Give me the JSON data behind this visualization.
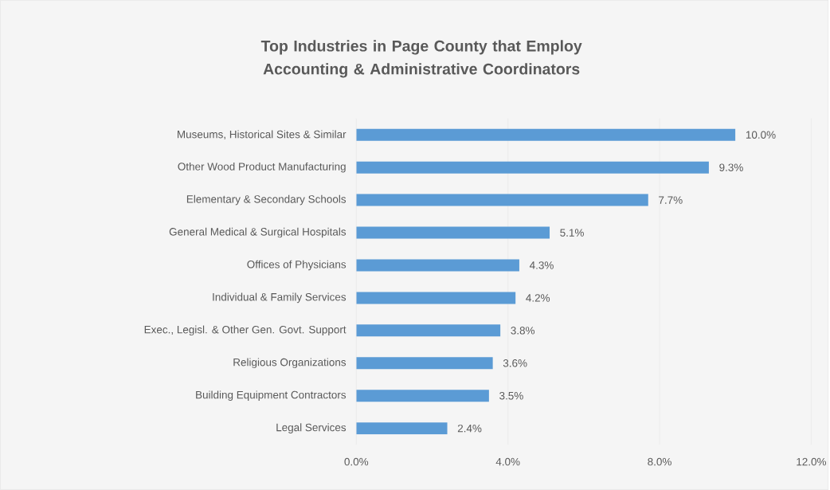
{
  "chart_data": {
    "type": "bar",
    "orientation": "horizontal",
    "title": "Top Industries in Page County that Employ Accounting & Administrative Coordinators",
    "categories": [
      "Museums, Historical Sites & Similar",
      "Other Wood Product Manufacturing",
      "Elementary & Secondary Schools",
      "General Medical & Surgical Hospitals",
      "Offices of Physicians",
      "Individual & Family Services",
      "Exec., Legisl. & Other Gen. Govt. Support",
      "Religious Organizations",
      "Building Equipment Contractors",
      "Legal Services"
    ],
    "values": [
      10.0,
      9.3,
      7.7,
      5.1,
      4.3,
      4.2,
      3.8,
      3.6,
      3.5,
      2.4
    ],
    "value_labels": [
      "10.0%",
      "9.3%",
      "7.7%",
      "5.1%",
      "4.3%",
      "4.2%",
      "3.8%",
      "3.6%",
      "3.5%",
      "2.4%"
    ],
    "color": "#5b9bd5",
    "xlim": [
      0,
      12
    ],
    "xticks": [
      {
        "value": 0,
        "label": "0.0%"
      },
      {
        "value": 4,
        "label": "4.0%"
      },
      {
        "value": 8,
        "label": "8.0%"
      },
      {
        "value": 12,
        "label": "12.0%"
      }
    ],
    "grid": "x"
  }
}
